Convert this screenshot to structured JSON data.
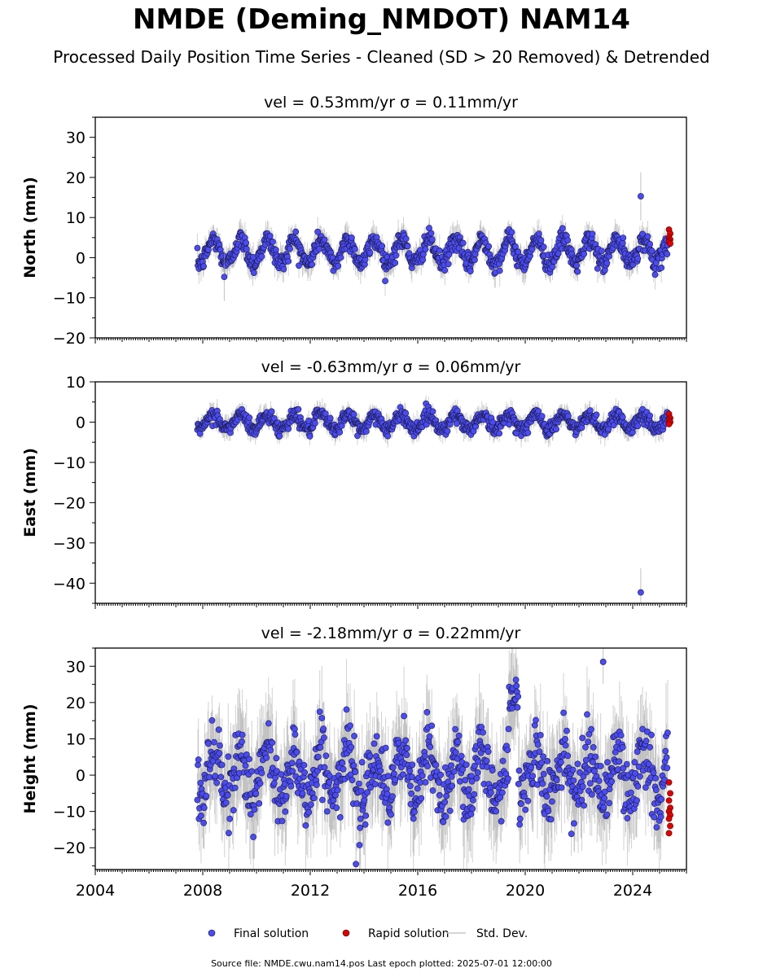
{
  "title": "NMDE (Deming_NMDOT) NAM14",
  "subtitle": "Processed Daily Position Time Series - Cleaned (SD > 20 Removed) & Detrended",
  "source_note": "Source file: NMDE.cwu.nam14.pos  Last epoch plotted: 2025-07-01 12:00:00",
  "chart_data": [
    {
      "type": "scatter",
      "panel_title": "vel = 0.53mm/yr   σ = 0.11mm/yr",
      "ylabel": "North (mm)",
      "ylim": [
        -20,
        35
      ],
      "yticks": [
        -20,
        -10,
        0,
        10,
        20,
        30
      ],
      "ytick_labels": [
        "−20",
        "−10",
        "0",
        "10",
        "20",
        "30"
      ],
      "xlim": [
        2004.0,
        2026.0
      ],
      "series_shape": {
        "start": 2007.8,
        "end": 2025.3,
        "seasonal_amplitude": 3.0,
        "offset": 1.5,
        "noise": 1.2
      },
      "outliers": [
        {
          "x": 2024.3,
          "y": 15.3
        },
        {
          "x": 2008.8,
          "y": -4.8
        }
      ],
      "rapid": {
        "x": 2025.35,
        "values": [
          7,
          6,
          5,
          4.5,
          4,
          3.5
        ]
      }
    },
    {
      "type": "scatter",
      "panel_title": "vel = -0.63mm/yr   σ = 0.06mm/yr",
      "ylabel": "East (mm)",
      "ylim": [
        -45,
        10
      ],
      "yticks": [
        -40,
        -30,
        -20,
        -10,
        0,
        10
      ],
      "ytick_labels": [
        "−40",
        "−30",
        "−20",
        "−10",
        "0",
        "10"
      ],
      "xlim": [
        2004.0,
        2026.0
      ],
      "series_shape": {
        "start": 2007.8,
        "end": 2025.3,
        "seasonal_amplitude": 1.8,
        "offset": 0.0,
        "noise": 0.9
      },
      "outliers": [
        {
          "x": 2024.3,
          "y": -42.3
        }
      ],
      "rapid": {
        "x": 2025.35,
        "values": [
          2,
          1,
          0.5,
          0,
          -0.5
        ]
      }
    },
    {
      "type": "scatter",
      "panel_title": "vel = -2.18mm/yr   σ = 0.22mm/yr",
      "ylabel": "Height (mm)",
      "ylim": [
        -26,
        35
      ],
      "yticks": [
        -20,
        -10,
        0,
        10,
        20,
        30
      ],
      "ytick_labels": [
        "−20",
        "−10",
        "0",
        "10",
        "20",
        "30"
      ],
      "xlim": [
        2004.0,
        2026.0
      ],
      "series_shape": {
        "start": 2007.8,
        "end": 2025.3,
        "seasonal_amplitude": 6.5,
        "offset": 0.0,
        "noise": 4.5
      },
      "outliers": [
        {
          "x": 2022.9,
          "y": 31.2
        },
        {
          "x": 2013.7,
          "y": -24.5
        }
      ],
      "rapid": {
        "x": 2025.35,
        "values": [
          -2,
          -5,
          -7,
          -9,
          -10,
          -11,
          -12,
          -14,
          -16
        ]
      }
    }
  ],
  "xticks": [
    2004,
    2008,
    2012,
    2016,
    2020,
    2024
  ],
  "xtick_labels": [
    "2004",
    "2008",
    "2012",
    "2016",
    "2020",
    "2024"
  ],
  "legend": {
    "placement": "bottom-center",
    "items": [
      {
        "label": "Final solution",
        "kind": "dot",
        "color": "#4b4bf5"
      },
      {
        "label": "Rapid solution",
        "kind": "dot",
        "color": "#e00000"
      },
      {
        "label": "Std. Dev.",
        "kind": "line",
        "color": "#c8c8c8"
      }
    ]
  },
  "colors": {
    "final": "#4b4bf5",
    "rapid": "#e00000",
    "stddev": "#9a9a9a",
    "edge": "#1a1a40"
  }
}
